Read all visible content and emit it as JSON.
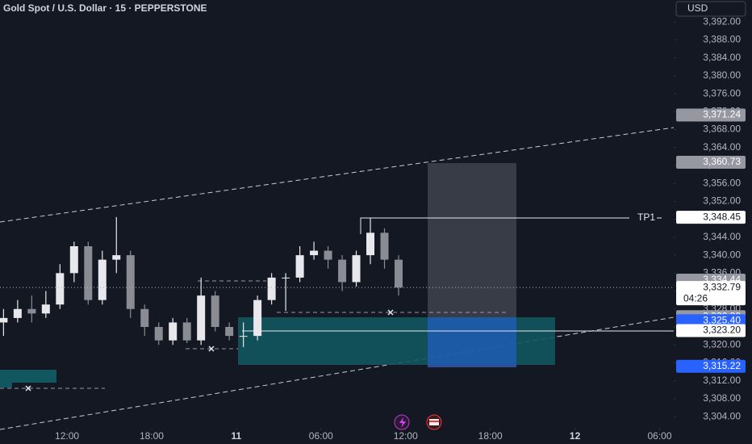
{
  "header": {
    "title": "Gold Spot / U.S. Dollar · 15 · PEPPERSTONE",
    "currency": "USD"
  },
  "chart_data": {
    "type": "candlestick",
    "x": [
      7.5,
      8.5,
      9.5,
      10.5,
      11.5,
      12.5,
      13.5,
      14.5,
      15.5,
      16.5,
      17.5,
      18.5,
      19.5,
      20.5,
      21.5,
      22.5,
      23.5,
      24.5,
      25.5,
      26.5,
      27.5,
      28.5,
      29.5,
      30.5,
      31.5,
      32.5,
      33.5,
      34.5,
      35.5
    ],
    "open": [
      3325,
      3326,
      3328,
      3327,
      3329,
      3336,
      3342,
      3330,
      3339,
      3340,
      3328,
      3324,
      3321,
      3325,
      3321,
      3331,
      3324,
      3322,
      3322,
      3330,
      3335,
      3335,
      3340,
      3341,
      3339,
      3334,
      3340,
      3345,
      3339
    ],
    "high": [
      3328,
      3330,
      3331,
      3332,
      3338,
      3343,
      3343,
      3341,
      3348.5,
      3341,
      3329,
      3325,
      3326,
      3326,
      3335,
      3332,
      3325,
      3325,
      3331,
      3336,
      3336,
      3342,
      3343,
      3342,
      3340,
      3341,
      3348.3,
      3346,
      3340
    ],
    "low": [
      3322,
      3325,
      3325,
      3326,
      3328,
      3334,
      3329,
      3329,
      3336,
      3326,
      3322,
      3320,
      3320,
      3320.4,
      3320,
      3323,
      3321,
      3319.5,
      3321,
      3329,
      3327.6,
      3334,
      3339,
      3337,
      3332,
      3333,
      3338,
      3337,
      3331
    ],
    "close": [
      3326,
      3328,
      3327,
      3329,
      3336,
      3342,
      3330,
      3339,
      3340,
      3328,
      3324,
      3321,
      3325,
      3321,
      3331,
      3324,
      3322,
      3322,
      3330,
      3335,
      3335,
      3340,
      3341,
      3339,
      3334,
      3340,
      3345,
      3339,
      3332.79
    ],
    "up_color": "#e8e8ec",
    "down_color": "#8a8c93",
    "xlim": [
      7.25,
      55
    ],
    "xticks": [
      {
        "value": 12,
        "label": "12:00"
      },
      {
        "value": 18,
        "label": "18:00"
      },
      {
        "value": 24,
        "label": "11"
      },
      {
        "value": 30,
        "label": "06:00"
      },
      {
        "value": 36,
        "label": "12:00"
      },
      {
        "value": 42,
        "label": "18:00"
      },
      {
        "value": 48,
        "label": "12"
      },
      {
        "value": 54,
        "label": "06:00"
      }
    ],
    "ylim": [
      3301.5,
      3396.9
    ],
    "yticks": [
      {
        "value": 3392,
        "label": "3,392.00"
      },
      {
        "value": 3388,
        "label": "3,388.00"
      },
      {
        "value": 3384,
        "label": "3,384.00"
      },
      {
        "value": 3380,
        "label": "3,380.00"
      },
      {
        "value": 3376,
        "label": "3,376.00"
      },
      {
        "value": 3372,
        "label": "3,372.00"
      },
      {
        "value": 3368,
        "label": "3,368.00"
      },
      {
        "value": 3364,
        "label": "3,364.00"
      },
      {
        "value": 3360,
        "label": "3,360.00"
      },
      {
        "value": 3356,
        "label": "3,356.00"
      },
      {
        "value": 3352,
        "label": "3,352.00"
      },
      {
        "value": 3348,
        "label": "3,348.00"
      },
      {
        "value": 3344,
        "label": "3,344.00"
      },
      {
        "value": 3340,
        "label": "3,340.00"
      },
      {
        "value": 3336,
        "label": "3,336.00"
      },
      {
        "value": 3332,
        "label": "3,332.00"
      },
      {
        "value": 3328,
        "label": "3,328.00"
      },
      {
        "value": 3324,
        "label": "3,324.00"
      },
      {
        "value": 3320,
        "label": "3,320.00"
      },
      {
        "value": 3316,
        "label": "3,316.00"
      },
      {
        "value": 3312,
        "label": "3,312.00"
      },
      {
        "value": 3308,
        "label": "3,308.00"
      },
      {
        "value": 3304,
        "label": "3,304.00"
      }
    ],
    "price_tags": [
      {
        "value": 3371.24,
        "label": "3,371.24",
        "style": "grey"
      },
      {
        "value": 3360.73,
        "label": "3,360.73",
        "style": "grey"
      },
      {
        "value": 3348.45,
        "label": "3,348.45",
        "style": "white",
        "tag_text": "TP1"
      },
      {
        "value": 3334.44,
        "label": "3,334.44",
        "style": "grey"
      },
      {
        "value": 3332.79,
        "label": "3,332.79",
        "style": "white",
        "countdown": "04:26"
      },
      {
        "value": 3326.3,
        "label": "3,326.30",
        "style": "grey"
      },
      {
        "value": 3325.4,
        "label": "3,325.40",
        "style": "blue"
      },
      {
        "value": 3323.2,
        "label": "3,323.20",
        "style": "white"
      },
      {
        "value": 3315.22,
        "label": "3,315.22",
        "style": "blue"
      }
    ]
  }
}
